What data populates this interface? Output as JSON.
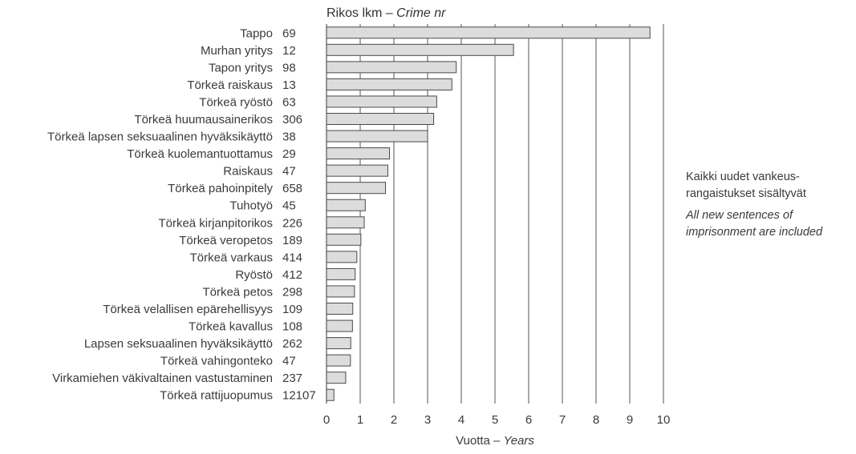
{
  "chart_data": {
    "type": "bar",
    "orientation": "horizontal",
    "header": {
      "label_fi": "Rikos lkm",
      "separator": " – ",
      "label_en": "Crime nr"
    },
    "xlabel": {
      "label_fi": "Vuotta",
      "separator": " – ",
      "label_en": "Years"
    },
    "xlim": [
      0,
      10
    ],
    "xticks": [
      0,
      1,
      2,
      3,
      4,
      5,
      6,
      7,
      8,
      9,
      10
    ],
    "grid": true,
    "categories": [
      "Tappo",
      "Murhan yritys",
      "Tapon yritys",
      "Törkeä raiskaus",
      "Törkeä ryöstö",
      "Törkeä huumausainerikos",
      "Törkeä lapsen seksuaalinen hyväksikäyttö",
      "Törkeä kuolemantuottamus",
      "Raiskaus",
      "Törkeä pahoinpitely",
      "Tuhotyö",
      "Törkeä kirjanpitorikos",
      "Törkeä veropetos",
      "Törkeä varkaus",
      "Ryöstö",
      "Törkeä petos",
      "Törkeä velallisen epärehellisyys",
      "Törkeä kavallus",
      "Lapsen seksuaalinen hyväksikäyttö",
      "Törkeä vahingonteko",
      "Virkamiehen väkivaltainen vastustaminen",
      "Törkeä rattijuopumus"
    ],
    "counts": [
      "69",
      "12",
      "98",
      "13",
      "63",
      "306",
      "38",
      "29",
      "47",
      "658",
      "45",
      "226",
      "189",
      "414",
      "412",
      "298",
      "109",
      "108",
      "262",
      "47",
      "237",
      "12107"
    ],
    "values": [
      9.6,
      5.55,
      3.85,
      3.72,
      3.27,
      3.18,
      3.0,
      1.87,
      1.82,
      1.75,
      1.15,
      1.12,
      1.02,
      0.9,
      0.85,
      0.83,
      0.78,
      0.77,
      0.72,
      0.71,
      0.57,
      0.22
    ],
    "colors": {
      "bar_fill": "#dcdcdc",
      "bar_stroke": "#4a4a4a",
      "grid": "#555555",
      "text": "#3a3a3a"
    }
  },
  "note": {
    "fi_line1": "Kaikki uudet vankeus-",
    "fi_line2": "rangaistukset sisältyvät",
    "en_line1": "All new sentences of",
    "en_line2": "imprisonment are included"
  }
}
